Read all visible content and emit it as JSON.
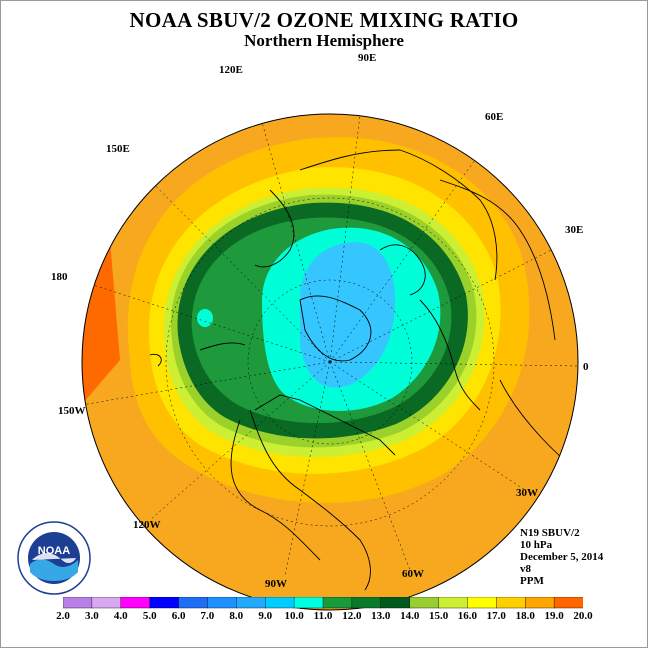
{
  "title": "NOAA SBUV/2 OZONE MIXING RATIO",
  "subtitle": "Northern Hemisphere",
  "longitude_labels": [
    "90E",
    "60E",
    "30E",
    "0",
    "30W",
    "60W",
    "90W",
    "120W",
    "150W",
    "180",
    "150E",
    "120E"
  ],
  "metadata": {
    "instrument": "N19 SBUV/2",
    "pressure": "10 hPa",
    "date": "December 5, 2014",
    "version": "v8",
    "units": "PPM"
  },
  "logo": {
    "name": "noaa-logo",
    "text": "NOAA"
  },
  "colorbar": {
    "labels": [
      "2.0",
      "3.0",
      "4.0",
      "5.0",
      "6.0",
      "7.0",
      "8.0",
      "9.0",
      "10.0",
      "11.0",
      "12.0",
      "13.0",
      "14.0",
      "15.0",
      "16.0",
      "17.0",
      "18.0",
      "19.0",
      "20.0"
    ],
    "colors": [
      "#b87fe6",
      "#d8a8f0",
      "#ff00ff",
      "#0000ff",
      "#1e6ef5",
      "#1e90ff",
      "#22aaff",
      "#00ccff",
      "#00ffe0",
      "#1a9a3a",
      "#0a7a2a",
      "#005a1e",
      "#9acd32",
      "#ccee33",
      "#ffff00",
      "#ffd000",
      "#ffa500",
      "#ff6600",
      "#ff0000",
      "#8b5a3c"
    ]
  },
  "colors": {
    "background": "#ffffff",
    "ocean_outer": "#f7a81f",
    "band_orange": "#ffb400",
    "band_yellow": "#ffe400",
    "band_lightgreen": "#a8dc2a",
    "band_green": "#1e9a3c",
    "band_darkgreen": "#0a6a24",
    "band_cyan": "#00ffd8",
    "band_blue": "#35c6ff",
    "edge_red": "#ff6a00"
  }
}
